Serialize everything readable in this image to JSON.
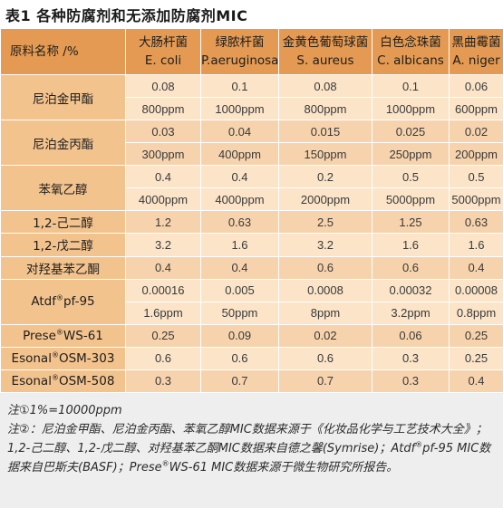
{
  "title": "表1  各种防腐剂和无添加防腐剂MIC",
  "table": {
    "corner_label": "原料名称 /%",
    "columns": [
      {
        "cn": "大肠杆菌",
        "latin": "E. coli"
      },
      {
        "cn": "绿脓杆菌",
        "latin": "P.aeruginosa"
      },
      {
        "cn": "金黄色葡萄球菌",
        "latin": "S. aureus"
      },
      {
        "cn": "白色念珠菌",
        "latin": "C. albicans"
      },
      {
        "cn": "黑曲霉菌",
        "latin": "A. niger"
      }
    ],
    "rows": [
      {
        "name": "尼泊金甲酯",
        "sup": "",
        "suffix": "",
        "pct": [
          "0.08",
          "0.1",
          "0.08",
          "0.1",
          "0.06"
        ],
        "ppm": [
          "800ppm",
          "1000ppm",
          "800ppm",
          "1000ppm",
          "600ppm"
        ]
      },
      {
        "name": "尼泊金丙酯",
        "sup": "",
        "suffix": "",
        "pct": [
          "0.03",
          "0.04",
          "0.015",
          "0.025",
          "0.02"
        ],
        "ppm": [
          "300ppm",
          "400ppm",
          "150ppm",
          "250ppm",
          "200ppm"
        ]
      },
      {
        "name": "苯氧乙醇",
        "sup": "",
        "suffix": "",
        "pct": [
          "0.4",
          "0.4",
          "0.2",
          "0.5",
          "0.5"
        ],
        "ppm": [
          "4000ppm",
          "4000ppm",
          "2000ppm",
          "5000ppm",
          "5000ppm"
        ]
      },
      {
        "name": "1,2-己二醇",
        "sup": "",
        "suffix": "",
        "pct": [
          "1.2",
          "0.63",
          "2.5",
          "1.25",
          "0.63"
        ]
      },
      {
        "name": "1,2-戊二醇",
        "sup": "",
        "suffix": "",
        "pct": [
          "3.2",
          "1.6",
          "3.2",
          "1.6",
          "1.6"
        ]
      },
      {
        "name": "对羟基苯乙酮",
        "sup": "",
        "suffix": "",
        "pct": [
          "0.4",
          "0.4",
          "0.6",
          "0.6",
          "0.4"
        ]
      },
      {
        "name": "Atdf",
        "sup": "®",
        "suffix": "pf-95",
        "pct": [
          "0.00016",
          "0.005",
          "0.0008",
          "0.00032",
          "0.00008"
        ],
        "ppm": [
          "1.6ppm",
          "50ppm",
          "8ppm",
          "3.2ppm",
          "0.8ppm"
        ]
      },
      {
        "name": "Prese",
        "sup": "®",
        "suffix": "WS-61",
        "pct": [
          "0.25",
          "0.09",
          "0.02",
          "0.06",
          "0.25"
        ]
      },
      {
        "name": "Esonal",
        "sup": "®",
        "suffix": "OSM-303",
        "pct": [
          "0.6",
          "0.6",
          "0.6",
          "0.3",
          "0.25"
        ]
      },
      {
        "name": "Esonal",
        "sup": "®",
        "suffix": "OSM-508",
        "pct": [
          "0.3",
          "0.7",
          "0.7",
          "0.3",
          "0.4"
        ]
      }
    ]
  },
  "notes": {
    "note1": "注①1%=10000ppm",
    "note2_part1": "注②：尼泊金甲酯、尼泊金丙酯、苯氧乙醇MIC数据来源于《化妆品化学与工艺技术大全》；1,2-己二醇、1,2-戊二醇、对羟基苯乙酮MIC数据来自德之馨(Symrise)；Atdf",
    "note2_sup1": "®",
    "note2_part2": "pf-95 MIC数据来自巴斯夫(BASF)；Prese",
    "note2_sup2": "®",
    "note2_part3": "WS-61 MIC数据来源于微生物研究所报告。"
  }
}
